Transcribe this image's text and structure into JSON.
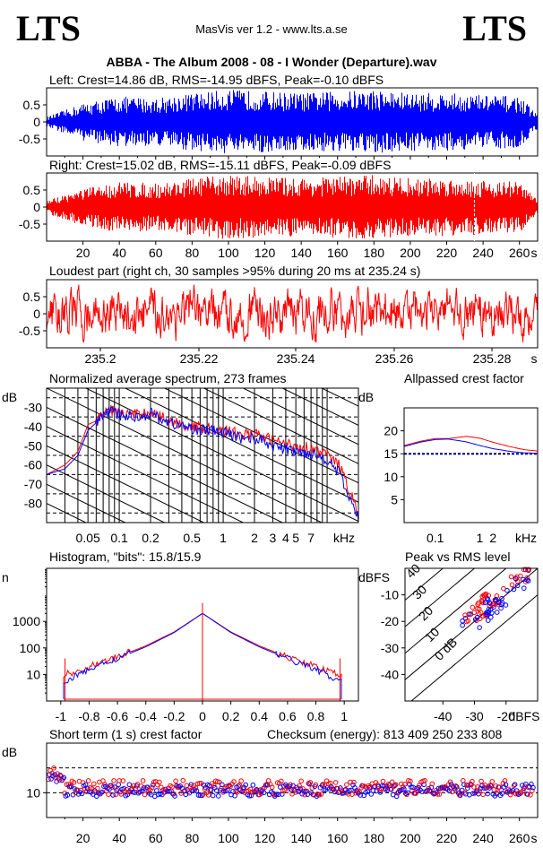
{
  "header": {
    "logo_left": "LTS",
    "logo_right": "LTS",
    "app": "MasVis ver 1.2 - www.lts.a.se",
    "track": "ABBA - The Album 2008 - 08 - I Wonder (Departure).wav"
  },
  "colors": {
    "left": "#0000ff",
    "right": "#ff0000",
    "grid": "#000000"
  },
  "chart_data": [
    {
      "id": "left_waveform",
      "type": "area",
      "title": "Left: Crest=14.86 dB, RMS=-14.95 dBFS, Peak=-0.10 dBFS",
      "yticks": [
        "0.5",
        "0",
        "-0.5"
      ],
      "ylim": [
        -1,
        1
      ],
      "xlim": [
        0,
        270
      ],
      "envelope": {
        "x": [
          0,
          20,
          40,
          60,
          80,
          100,
          120,
          140,
          160,
          180,
          200,
          220,
          240,
          260,
          270
        ],
        "peak": [
          0.15,
          0.55,
          0.75,
          0.7,
          0.85,
          0.95,
          0.9,
          0.85,
          0.9,
          0.95,
          0.85,
          0.85,
          0.8,
          0.75,
          0.2
        ]
      }
    },
    {
      "id": "right_waveform",
      "type": "area",
      "title": "Right: Crest=15.02 dB, RMS=-15.11 dBFS, Peak=-0.09 dBFS",
      "yticks": [
        "0.5",
        "0",
        "-0.5"
      ],
      "ylim": [
        -1,
        1
      ],
      "xlim": [
        0,
        270
      ],
      "xticks": [
        "20",
        "40",
        "60",
        "80",
        "100",
        "120",
        "140",
        "160",
        "180",
        "200",
        "220",
        "240",
        "260",
        "s"
      ],
      "envelope": {
        "x": [
          0,
          20,
          40,
          60,
          80,
          100,
          120,
          140,
          160,
          180,
          200,
          220,
          240,
          260,
          270
        ],
        "peak": [
          0.2,
          0.55,
          0.75,
          0.7,
          0.85,
          0.95,
          0.9,
          0.85,
          0.9,
          0.95,
          0.85,
          0.85,
          0.8,
          0.75,
          0.2
        ]
      },
      "marker_s": 235.24
    },
    {
      "id": "loudest_part",
      "type": "line",
      "title": "Loudest part (right ch, 30 samples >95% during 20 ms at 235.24 s)",
      "yticks": [
        "0.5",
        "0",
        "-0.5"
      ],
      "ylim": [
        -1,
        1
      ],
      "xticks": [
        "235.2",
        "235.22",
        "235.24",
        "235.26",
        "235.28",
        "s"
      ]
    },
    {
      "id": "spectrum",
      "type": "line",
      "title": "Normalized average spectrum, 273 frames",
      "ylabel": "dB",
      "yticks": [
        "-30",
        "-40",
        "-50",
        "-60",
        "-70",
        "-80"
      ],
      "xticks": [
        "0.05",
        "0.1",
        "0.2",
        "0.5",
        "1",
        "2",
        "3",
        "4",
        "5",
        "7",
        "kHz"
      ],
      "xlim_khz": [
        0.02,
        20
      ],
      "ylim_db": [
        -90,
        -20
      ],
      "series": [
        {
          "color": "red",
          "x": [
            0.02,
            0.03,
            0.04,
            0.05,
            0.06,
            0.08,
            0.1,
            0.15,
            0.2,
            0.3,
            0.5,
            0.7,
            1,
            1.5,
            2,
            3,
            4,
            5,
            7,
            10,
            13,
            16,
            20
          ],
          "values": [
            -65,
            -60,
            -53,
            -39,
            -37,
            -31,
            -33,
            -34,
            -32,
            -37,
            -40,
            -41,
            -42,
            -44,
            -44,
            -47,
            -49,
            -50,
            -51,
            -55,
            -60,
            -72,
            -85
          ]
        },
        {
          "color": "blue",
          "x": [
            0.02,
            0.03,
            0.04,
            0.05,
            0.06,
            0.08,
            0.1,
            0.15,
            0.2,
            0.3,
            0.5,
            0.7,
            1,
            1.5,
            2,
            3,
            4,
            5,
            7,
            10,
            13,
            16,
            20
          ],
          "values": [
            -65,
            -62,
            -55,
            -42,
            -38,
            -32,
            -34,
            -35,
            -33,
            -38,
            -41,
            -42,
            -43,
            -46,
            -46,
            -50,
            -52,
            -53,
            -54,
            -57,
            -64,
            -76,
            -88
          ]
        }
      ]
    },
    {
      "id": "allpassed_crest",
      "type": "line",
      "title": "Allpassed crest factor",
      "ylabel": "dB",
      "yticks": [
        "20",
        "15",
        "10",
        "5"
      ],
      "xticks": [
        "0.1",
        "1",
        "2",
        "kHz"
      ],
      "xlim_khz": [
        0.02,
        20
      ],
      "ylim_db": [
        0,
        25
      ],
      "reference_db": 15,
      "series": [
        {
          "color": "red",
          "x": [
            0.02,
            0.05,
            0.1,
            0.2,
            0.5,
            1,
            2,
            5,
            10,
            20
          ],
          "values": [
            16.8,
            17.8,
            18.3,
            18.3,
            18.8,
            18.4,
            17.5,
            16.5,
            15.9,
            15.6
          ]
        },
        {
          "color": "blue",
          "x": [
            0.02,
            0.05,
            0.1,
            0.2,
            0.5,
            1,
            2,
            5,
            10,
            20
          ],
          "values": [
            16.6,
            17.6,
            18.1,
            18.2,
            17.6,
            16.8,
            16.1,
            15.5,
            15.2,
            15.1
          ]
        }
      ]
    },
    {
      "id": "histogram",
      "type": "line",
      "title": "Histogram, \"bits\": 15.8/15.9",
      "ylabel": "n",
      "yticks": [
        "1000",
        "100",
        "10"
      ],
      "xticks": [
        "-1",
        "-0.8",
        "-0.6",
        "-0.4",
        "-0.2",
        "0",
        "0.2",
        "0.4",
        "0.6",
        "0.8",
        "1"
      ],
      "xlim": [
        -1.1,
        1.1
      ],
      "ylim_log": [
        1,
        100000
      ],
      "series": [
        {
          "color": "red",
          "x": [
            -0.98,
            -0.9,
            -0.8,
            -0.6,
            -0.4,
            -0.2,
            0,
            0.2,
            0.4,
            0.6,
            0.8,
            0.9,
            0.98
          ],
          "values": [
            10,
            12,
            20,
            45,
            120,
            400,
            2000,
            400,
            120,
            45,
            20,
            12,
            10
          ]
        },
        {
          "color": "blue",
          "x": [
            -0.98,
            -0.9,
            -0.8,
            -0.6,
            -0.4,
            -0.2,
            0,
            0.2,
            0.4,
            0.6,
            0.8,
            0.9,
            0.98
          ],
          "values": [
            5,
            8,
            16,
            40,
            110,
            380,
            2000,
            380,
            110,
            40,
            16,
            8,
            5
          ]
        }
      ]
    },
    {
      "id": "peak_vs_rms",
      "type": "scatter",
      "title": "Peak vs RMS level",
      "ylabel": "dBFS",
      "xlabel": "dBFS",
      "yticks": [
        "-10",
        "-20",
        "-30",
        "-40"
      ],
      "xticks": [
        "-40",
        "-30",
        "-20"
      ],
      "diag_labels": [
        "40",
        "30",
        "20",
        "10",
        "0 dB"
      ],
      "xlim": [
        -52,
        -10
      ],
      "ylim": [
        -50,
        0
      ]
    },
    {
      "id": "short_term_crest",
      "type": "scatter",
      "title": "Short term (1 s) crest factor",
      "checksum": "Checksum (energy):   813 409 250 233 808",
      "ylabel": "dB",
      "yticks": [
        "10"
      ],
      "xticks": [
        "20",
        "40",
        "60",
        "80",
        "100",
        "120",
        "140",
        "160",
        "180",
        "200",
        "220",
        "240",
        "260",
        "s"
      ],
      "xlim": [
        0,
        270
      ],
      "ylim": [
        0,
        30
      ]
    }
  ]
}
